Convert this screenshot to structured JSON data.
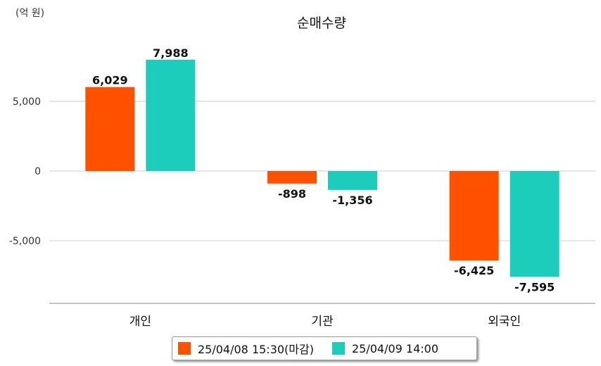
{
  "unit_label": "(억 원)",
  "colors": {
    "series1": "#ff5100",
    "series2": "#1dcdbc",
    "grid": "#cccccc",
    "axis": "#888888"
  },
  "chart_data": {
    "type": "bar",
    "title": "순매수량",
    "categories": [
      "개인",
      "기관",
      "외국인"
    ],
    "series": [
      {
        "name": "25/04/08 15:30(마감)",
        "values": [
          6029,
          -898,
          -6425
        ],
        "labels": [
          "6,029",
          "-898",
          "-6,425"
        ]
      },
      {
        "name": "25/04/09 14:00",
        "values": [
          7988,
          -1356,
          -7595
        ],
        "labels": [
          "7,988",
          "-1,356",
          "-7,595"
        ]
      }
    ],
    "yticks": [
      5000,
      0,
      -5000
    ],
    "ytick_labels": [
      "5,000",
      "0",
      "-5,000"
    ],
    "ylim": [
      -9500,
      10000
    ],
    "grid": true,
    "legend_position": "bottom"
  }
}
